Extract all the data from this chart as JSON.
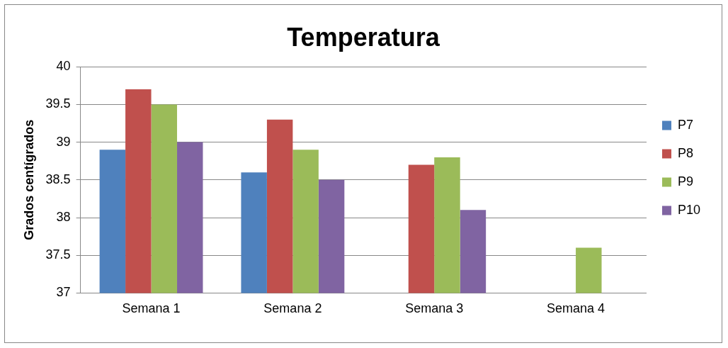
{
  "chart_data": {
    "type": "bar",
    "title": "Temperatura",
    "ylabel": "Grados centígrados",
    "categories": [
      "Semana 1",
      "Semana 2",
      "Semana 3",
      "Semana 4"
    ],
    "series": [
      {
        "name": "P7",
        "color": "#4f81bd",
        "values": [
          38.9,
          38.6,
          null,
          null
        ]
      },
      {
        "name": "P8",
        "color": "#c0504d",
        "values": [
          39.7,
          39.3,
          38.7,
          null
        ]
      },
      {
        "name": "P9",
        "color": "#9bbb59",
        "values": [
          39.5,
          38.9,
          38.8,
          37.6
        ]
      },
      {
        "name": "P10",
        "color": "#8064a2",
        "values": [
          39.0,
          38.5,
          38.1,
          null
        ]
      }
    ],
    "ylim": [
      37,
      40
    ],
    "yticks": [
      37,
      37.5,
      38,
      38.5,
      39,
      39.5,
      40
    ],
    "grid": "y",
    "legend": "right"
  }
}
